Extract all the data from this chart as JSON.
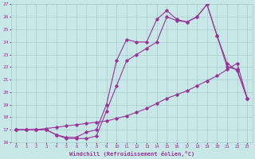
{
  "xlabel": "Windchill (Refroidissement éolien,°C)",
  "xlim": [
    -0.5,
    23.5
  ],
  "ylim": [
    16,
    27
  ],
  "yticks": [
    16,
    17,
    18,
    19,
    20,
    21,
    22,
    23,
    24,
    25,
    26,
    27
  ],
  "xticks": [
    0,
    1,
    2,
    3,
    4,
    5,
    6,
    7,
    8,
    9,
    10,
    11,
    12,
    13,
    14,
    15,
    16,
    17,
    18,
    19,
    20,
    21,
    22,
    23
  ],
  "background_color": "#c8e8e8",
  "grid_color": "#a8cccc",
  "line_color": "#993399",
  "line1_x": [
    0,
    1,
    2,
    3,
    4,
    5,
    6,
    7,
    8,
    9,
    10,
    11,
    12,
    13,
    14,
    15,
    16,
    17,
    18,
    19,
    20,
    21,
    22,
    23
  ],
  "line1_y": [
    17.0,
    17.0,
    17.0,
    17.0,
    16.6,
    16.4,
    16.4,
    16.8,
    17.0,
    19.0,
    22.5,
    24.2,
    24.0,
    24.0,
    25.8,
    26.5,
    25.8,
    25.6,
    26.0,
    27.0,
    24.5,
    22.0,
    21.8,
    19.5
  ],
  "line2_x": [
    0,
    1,
    2,
    3,
    4,
    5,
    6,
    7,
    8,
    9,
    10,
    11,
    12,
    13,
    14,
    15,
    16,
    17,
    18,
    19,
    20,
    21,
    22,
    23
  ],
  "line2_y": [
    17.0,
    17.0,
    17.0,
    17.0,
    16.6,
    16.3,
    16.3,
    16.3,
    16.5,
    18.5,
    20.5,
    22.5,
    23.0,
    23.5,
    24.0,
    26.0,
    25.7,
    25.6,
    26.0,
    27.0,
    24.5,
    22.3,
    21.7,
    19.5
  ],
  "line3_x": [
    0,
    1,
    2,
    3,
    4,
    5,
    6,
    7,
    8,
    9,
    10,
    11,
    12,
    13,
    14,
    15,
    16,
    17,
    18,
    19,
    20,
    21,
    22,
    23
  ],
  "line3_y": [
    17.0,
    17.0,
    17.0,
    17.1,
    17.2,
    17.3,
    17.4,
    17.5,
    17.6,
    17.7,
    17.9,
    18.1,
    18.4,
    18.7,
    19.1,
    19.5,
    19.8,
    20.1,
    20.5,
    20.9,
    21.3,
    21.8,
    22.3,
    19.5
  ],
  "marker": "D",
  "markersize": 1.8,
  "linewidth": 0.8
}
